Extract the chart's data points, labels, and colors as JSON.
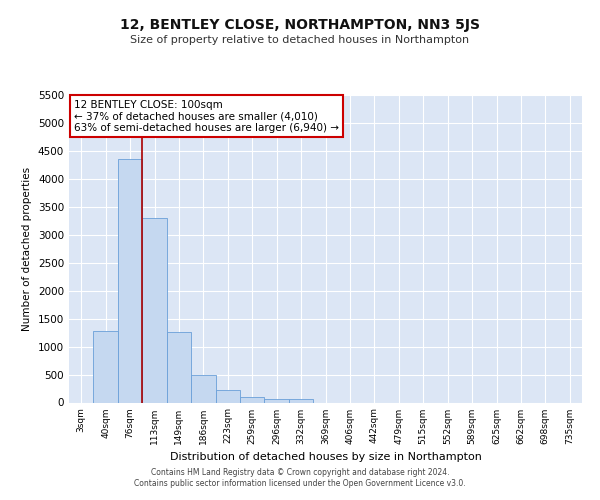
{
  "title": "12, BENTLEY CLOSE, NORTHAMPTON, NN3 5JS",
  "subtitle": "Size of property relative to detached houses in Northampton",
  "xlabel": "Distribution of detached houses by size in Northampton",
  "ylabel": "Number of detached properties",
  "bar_color": "#c5d8f0",
  "bar_edge_color": "#6a9fd8",
  "background_color": "#dce6f5",
  "grid_color": "#ffffff",
  "categories": [
    "3sqm",
    "40sqm",
    "76sqm",
    "113sqm",
    "149sqm",
    "186sqm",
    "223sqm",
    "259sqm",
    "296sqm",
    "332sqm",
    "369sqm",
    "406sqm",
    "442sqm",
    "479sqm",
    "515sqm",
    "552sqm",
    "589sqm",
    "625sqm",
    "662sqm",
    "698sqm",
    "735sqm"
  ],
  "values": [
    0,
    1270,
    4350,
    3300,
    1260,
    490,
    215,
    95,
    60,
    55,
    0,
    0,
    0,
    0,
    0,
    0,
    0,
    0,
    0,
    0,
    0
  ],
  "ylim": [
    0,
    5500
  ],
  "yticks": [
    0,
    500,
    1000,
    1500,
    2000,
    2500,
    3000,
    3500,
    4000,
    4500,
    5000,
    5500
  ],
  "property_line_x": 2.5,
  "annotation_text": "12 BENTLEY CLOSE: 100sqm\n← 37% of detached houses are smaller (4,010)\n63% of semi-detached houses are larger (6,940) →",
  "annotation_box_color": "#ffffff",
  "annotation_box_edge": "#cc0000",
  "property_line_color": "#aa0000",
  "footer_line1": "Contains HM Land Registry data © Crown copyright and database right 2024.",
  "footer_line2": "Contains public sector information licensed under the Open Government Licence v3.0."
}
